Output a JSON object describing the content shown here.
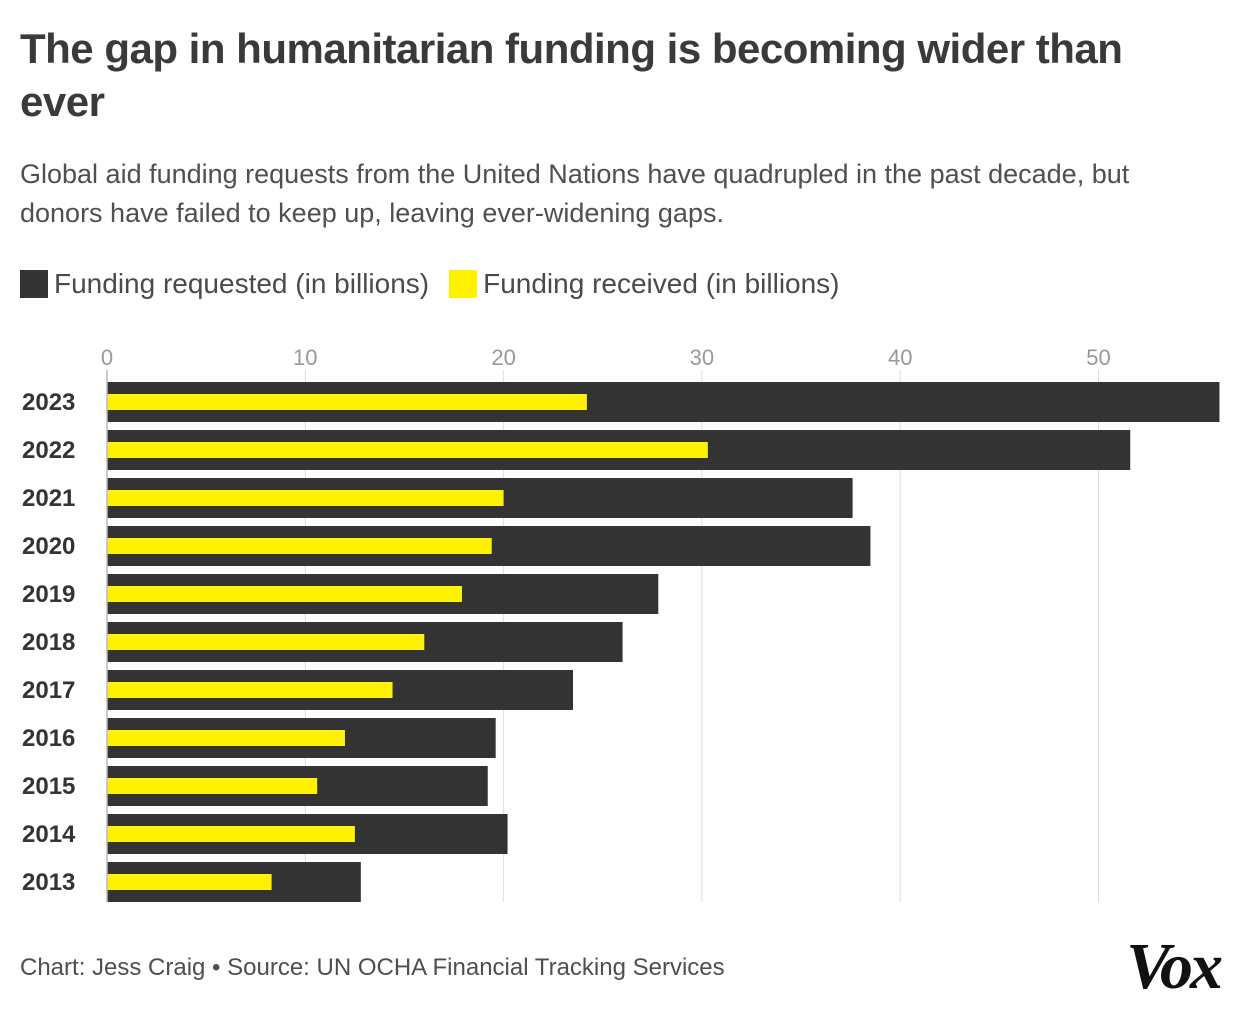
{
  "header": {
    "title": "The gap in humanitarian funding is becoming wider than ever",
    "subtitle": "Global aid funding requests from the United Nations have quadrupled in the past decade, but donors have failed to keep up, leaving ever-widening gaps."
  },
  "legend": {
    "requested_label": "Funding requested (in billions)",
    "received_label": "Funding received (in billions)"
  },
  "colors": {
    "requested": "#333333",
    "received": "#fff200",
    "axis_text": "#999999",
    "grid": "#dcdcdc"
  },
  "footer": {
    "credit": "Chart: Jess Craig • Source: UN OCHA Financial Tracking Services",
    "logo_text": "Vox"
  },
  "chart_data": {
    "type": "bar",
    "orientation": "horizontal",
    "categories": [
      "2023",
      "2022",
      "2021",
      "2020",
      "2019",
      "2018",
      "2017",
      "2016",
      "2015",
      "2014",
      "2013"
    ],
    "series": [
      {
        "name": "Funding requested (in billions)",
        "values": [
          56.1,
          51.6,
          37.6,
          38.5,
          27.8,
          26.0,
          23.5,
          19.6,
          19.2,
          20.2,
          12.8
        ]
      },
      {
        "name": "Funding received (in billions)",
        "values": [
          24.2,
          30.3,
          20.0,
          19.4,
          17.9,
          16.0,
          14.4,
          12.0,
          10.6,
          12.5,
          8.3
        ]
      }
    ],
    "xlim": [
      0,
      56
    ],
    "xticks": [
      0,
      10,
      20,
      30,
      40,
      50
    ],
    "xaxis_position": "top",
    "grid": true,
    "legend_placement": "top-left"
  }
}
